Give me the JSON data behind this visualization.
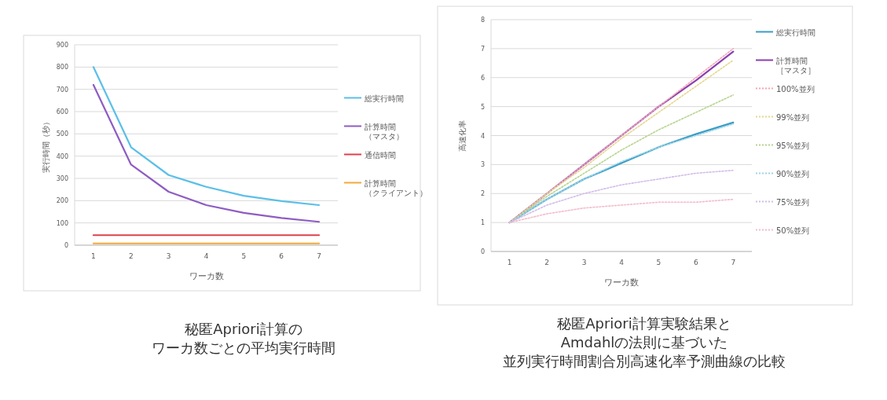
{
  "chart_data": [
    {
      "type": "line",
      "annotations": [
        "秘匿Apriori計算の",
        "ワーカ数ごとの平均実行時間"
      ],
      "xlabel": "ワーカ数",
      "ylabel": "実行時間（秒）",
      "categories": [
        "1",
        "2",
        "3",
        "4",
        "5",
        "6",
        "7"
      ],
      "ylim": [
        0,
        900
      ],
      "yticks": [
        0,
        100,
        200,
        300,
        400,
        500,
        600,
        700,
        800,
        900
      ],
      "grid": "y",
      "legend": "right",
      "line_style": "solid",
      "series": [
        {
          "name": "総実行時間",
          "color": "#5bbfe8",
          "values": [
            800,
            440,
            315,
            262,
            222,
            198,
            180
          ]
        },
        {
          "name": "計算時間（マスタ）",
          "color": "#8e5cc4",
          "values": [
            720,
            362,
            240,
            180,
            145,
            122,
            105
          ]
        },
        {
          "name": "通信時間",
          "color": "#e0404a",
          "values": [
            45,
            45,
            45,
            45,
            45,
            45,
            45
          ]
        },
        {
          "name": "計算時間（クライアント）",
          "color": "#f2a83a",
          "values": [
            8,
            8,
            8,
            8,
            8,
            8,
            8
          ]
        }
      ]
    },
    {
      "type": "line",
      "annotations": [
        "秘匿Apriori計算実験結果と",
        "Amdahlの法則に基づいた",
        "並列実行時間割合別高速化率予測曲線の比較"
      ],
      "xlabel": "ワーカ数",
      "ylabel": "高速化率",
      "categories": [
        "1",
        "2",
        "3",
        "4",
        "5",
        "6",
        "7"
      ],
      "ylim": [
        0,
        8
      ],
      "yticks": [
        0,
        1,
        2,
        3,
        4,
        5,
        6,
        7,
        8
      ],
      "grid": "y",
      "legend": "right",
      "line_style": "solid",
      "series": [
        {
          "name": "総実行時間",
          "color": "#3a9cc4",
          "values": [
            1,
            1.8,
            2.5,
            3.05,
            3.6,
            4.05,
            4.45
          ]
        },
        {
          "name": "計算時間［マスタ］",
          "color": "#8a3fb0",
          "values": [
            1,
            2.0,
            3.0,
            4.0,
            5.0,
            5.9,
            6.9
          ]
        },
        {
          "name": "100%並列",
          "color": "#f4a6b4",
          "line_style": "dotted",
          "values": [
            1,
            2,
            3,
            4,
            5,
            6,
            7
          ]
        },
        {
          "name": "99%並列",
          "color": "#e6d690",
          "line_style": "dotted",
          "values": [
            1,
            2.0,
            2.9,
            3.9,
            4.8,
            5.7,
            6.6
          ]
        },
        {
          "name": "95%並列",
          "color": "#b6d48e",
          "line_style": "dotted",
          "values": [
            1,
            1.9,
            2.7,
            3.5,
            4.2,
            4.8,
            5.4
          ]
        },
        {
          "name": "90%並列",
          "color": "#9fd6e8",
          "line_style": "dotted",
          "values": [
            1,
            1.8,
            2.5,
            3.1,
            3.6,
            4.0,
            4.4
          ]
        },
        {
          "name": "75%並列",
          "color": "#d2bce8",
          "line_style": "dotted",
          "values": [
            1,
            1.6,
            2.0,
            2.3,
            2.5,
            2.7,
            2.8
          ]
        },
        {
          "name": "50%並列",
          "color": "#f2bccb",
          "line_style": "dotted",
          "values": [
            1,
            1.3,
            1.5,
            1.6,
            1.7,
            1.7,
            1.8
          ]
        }
      ]
    }
  ]
}
